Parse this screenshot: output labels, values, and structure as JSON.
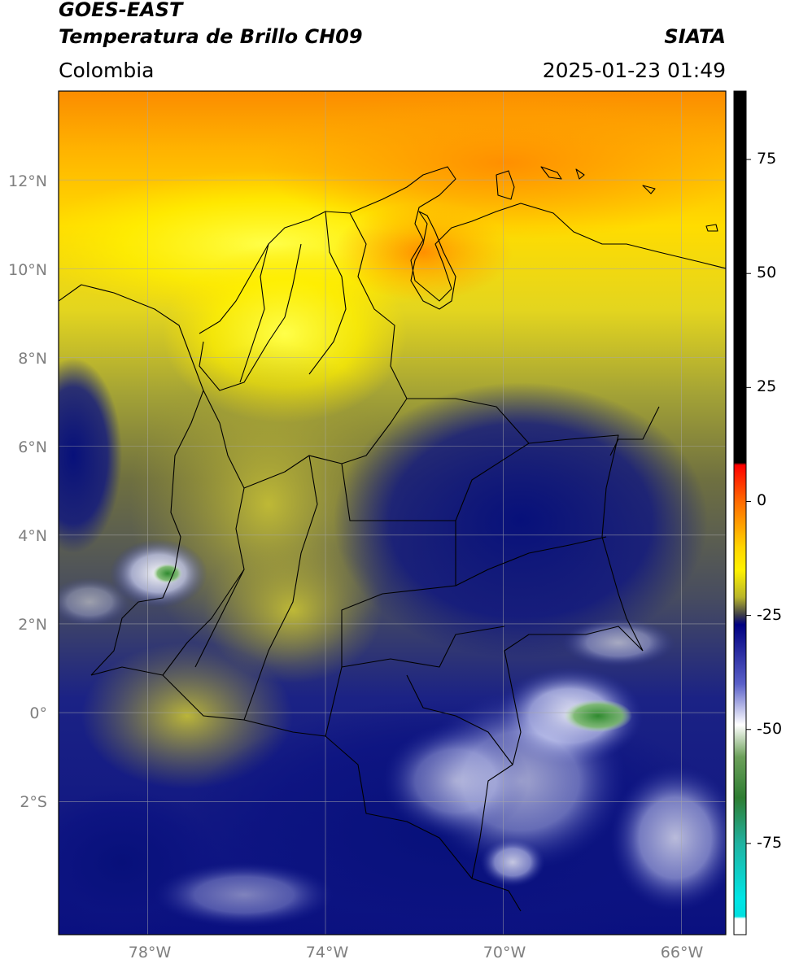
{
  "header": {
    "satellite": "GOES-EAST",
    "product": "Temperatura de Brillo CH09",
    "org": "SIATA",
    "region": "Colombia",
    "datetime": "2025-01-23 01:49"
  },
  "map": {
    "lon_range": [
      -80,
      -65
    ],
    "lat_range": [
      -5,
      14
    ],
    "lat_labels": [
      "12°N",
      "10°N",
      "8°N",
      "6°N",
      "4°N",
      "2°N",
      "0°",
      "2°S"
    ],
    "lat_values": [
      12,
      10,
      8,
      6,
      4,
      2,
      0,
      -2
    ],
    "lon_labels": [
      "78°W",
      "74°W",
      "70°W",
      "66°W"
    ],
    "lon_values": [
      -78,
      -74,
      -70,
      -66
    ],
    "gridlines": true,
    "colors": {
      "orange": "#fb8c00",
      "yellow": "#ffef00",
      "olive": "#8e8d2c",
      "navy": "#0d1282",
      "white_cloud": "#eef0ff",
      "green_core": "#4f9a3f",
      "border": "#000000",
      "grid": "#9a9a9a"
    }
  },
  "colorbar": {
    "range": [
      -95,
      90
    ],
    "tick_labels": [
      "75",
      "50",
      "25",
      "0",
      "-25",
      "-50",
      "-75"
    ],
    "tick_values": [
      75,
      50,
      25,
      0,
      -25,
      -50,
      -75
    ],
    "stops": [
      {
        "v": 90,
        "c": "#000000"
      },
      {
        "v": 8.5,
        "c": "#000000"
      },
      {
        "v": 8,
        "c": "#ff0000"
      },
      {
        "v": 0,
        "c": "#ff6a00"
      },
      {
        "v": -10,
        "c": "#ffd400"
      },
      {
        "v": -15,
        "c": "#fff200"
      },
      {
        "v": -21,
        "c": "#b8b52a"
      },
      {
        "v": -25,
        "c": "#3a3a4a"
      },
      {
        "v": -27,
        "c": "#000080"
      },
      {
        "v": -40,
        "c": "#5a60c8"
      },
      {
        "v": -49,
        "c": "#ffffff"
      },
      {
        "v": -56,
        "c": "#6ca05a"
      },
      {
        "v": -65,
        "c": "#2e7d32"
      },
      {
        "v": -75,
        "c": "#20b2a0"
      },
      {
        "v": -87,
        "c": "#00e5e5"
      },
      {
        "v": -91,
        "c": "#00e0e0"
      },
      {
        "v": -91.5,
        "c": "#ffffff"
      },
      {
        "v": -95,
        "c": "#ffffff"
      }
    ]
  }
}
